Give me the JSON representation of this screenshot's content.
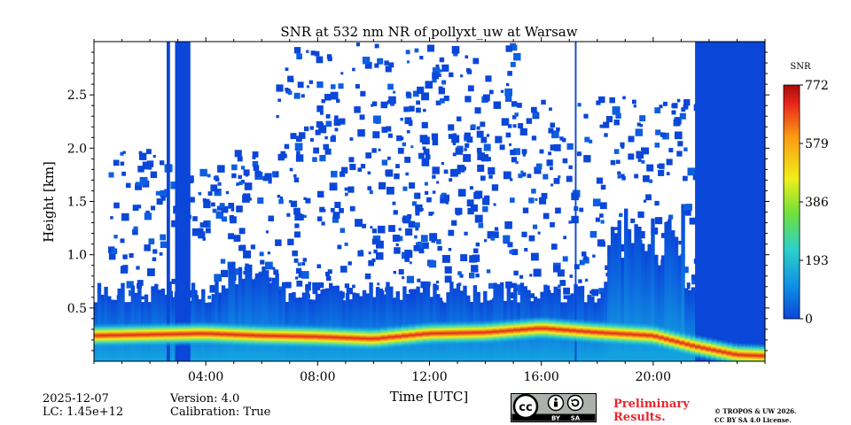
{
  "chart_data": {
    "type": "heatmap",
    "title": "SNR at 532 nm NR of pollyxt_uw at Warsaw",
    "xlabel": "Time [UTC]",
    "ylabel": "Height [km]",
    "x_range_hours": [
      0,
      24
    ],
    "y_range_km": [
      0,
      3.0
    ],
    "x_ticks": [
      "04:00",
      "08:00",
      "12:00",
      "16:00",
      "20:00"
    ],
    "x_tick_hours": [
      4,
      8,
      12,
      16,
      20
    ],
    "y_ticks": [
      "0.5",
      "1.0",
      "1.5",
      "2.0",
      "2.5"
    ],
    "y_tick_values": [
      0.5,
      1.0,
      1.5,
      2.0,
      2.5
    ],
    "colorbar": {
      "label": "SNR",
      "min": 0,
      "max": 772,
      "ticks": [
        "0",
        "193",
        "386",
        "579",
        "772"
      ],
      "tick_values": [
        0,
        193,
        386,
        579,
        772
      ],
      "colormap": [
        "#0a46d8",
        "#0f8fe6",
        "#2ed2c8",
        "#6fe03c",
        "#f0ee1a",
        "#fb9a12",
        "#e8261c",
        "#a80a0a"
      ]
    },
    "peak_layer_height_km": [
      {
        "hour": 0.0,
        "km": 0.24
      },
      {
        "hour": 2.0,
        "km": 0.25
      },
      {
        "hour": 4.0,
        "km": 0.26
      },
      {
        "hour": 6.0,
        "km": 0.24
      },
      {
        "hour": 8.0,
        "km": 0.23
      },
      {
        "hour": 10.0,
        "km": 0.21
      },
      {
        "hour": 12.0,
        "km": 0.26
      },
      {
        "hour": 14.0,
        "km": 0.27
      },
      {
        "hour": 16.0,
        "km": 0.31
      },
      {
        "hour": 18.0,
        "km": 0.27
      },
      {
        "hour": 20.0,
        "km": 0.24
      },
      {
        "hour": 21.5,
        "km": 0.14
      },
      {
        "hour": 23.0,
        "km": 0.06
      },
      {
        "hour": 24.0,
        "km": 0.05
      }
    ]
  },
  "info": {
    "date": "2025-12-07",
    "lc": "LC: 1.45e+12",
    "version": "Version: 4.0",
    "calibration": "Calibration: True",
    "preliminary_line1": "Preliminary",
    "preliminary_line2": "Results.",
    "copyright_line1": "© TROPOS & UW 2026.",
    "copyright_line2": "CC BY SA 4.0 License.",
    "license_badge": [
      "BY",
      "SA"
    ]
  }
}
